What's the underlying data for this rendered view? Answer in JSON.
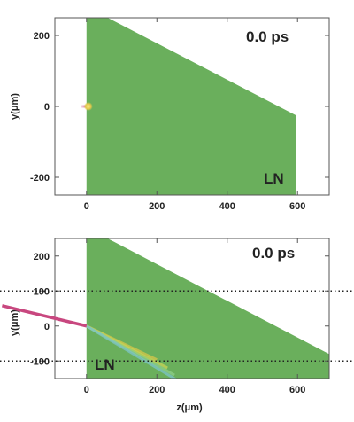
{
  "chart_data": [
    {
      "type": "area",
      "time_label": "0.0 ps",
      "material_label": "LN",
      "ylabel": "y(μm)",
      "xlabel": "",
      "xlim": [
        -90,
        690
      ],
      "ylim": [
        -250,
        250
      ],
      "xticks": [
        0,
        200,
        400,
        600
      ],
      "yticks": [
        -200,
        0,
        200
      ],
      "crystal_polygon": [
        [
          0,
          250
        ],
        [
          60,
          250
        ],
        [
          595,
          -25
        ],
        [
          595,
          -250
        ],
        [
          0,
          -250
        ]
      ],
      "pulse": {
        "x": 5,
        "y": 0,
        "tail_length": 20
      },
      "colors": {
        "crystal": "#6aaf5c",
        "pulse_core": "#e8d85a",
        "pulse_tail": "#c8477f"
      }
    },
    {
      "type": "area",
      "time_label": "0.0 ps",
      "material_label": "LN",
      "ylabel": "y(μm)",
      "xlabel": "z(μm)",
      "xlim": [
        -90,
        690
      ],
      "ylim": [
        -150,
        250
      ],
      "xticks": [
        0,
        200,
        400,
        600
      ],
      "yticks": [
        -100,
        0,
        100,
        200
      ],
      "crystal_polygon": [
        [
          0,
          250
        ],
        [
          60,
          250
        ],
        [
          690,
          -80
        ],
        [
          690,
          -150
        ],
        [
          0,
          -150
        ]
      ],
      "dotted_lines_y": [
        100,
        -100
      ],
      "beam": {
        "from": [
          -240,
          58
        ],
        "to": [
          0,
          0
        ]
      },
      "rainbow_spread": [
        {
          "slope": -0.48,
          "length": 200,
          "color": "#d7c54a"
        },
        {
          "slope": -0.52,
          "length": 230,
          "color": "#c9d456"
        },
        {
          "slope": -0.56,
          "length": 250,
          "color": "#8fcf8a"
        },
        {
          "slope": -0.6,
          "length": 270,
          "color": "#7ec4c8"
        }
      ],
      "colors": {
        "crystal": "#6aaf5c",
        "beam": "#c8477f"
      }
    }
  ]
}
